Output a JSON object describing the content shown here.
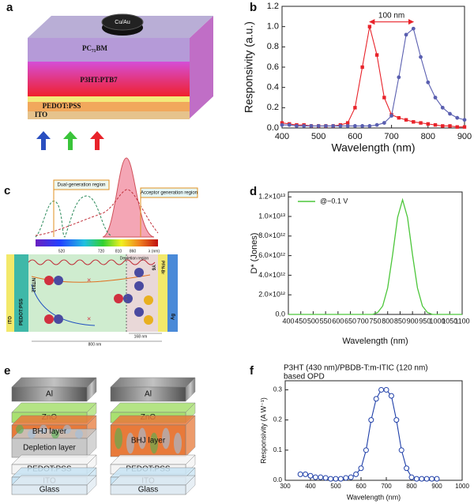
{
  "panel_labels": [
    "a",
    "b",
    "c",
    "d",
    "e",
    "f"
  ],
  "diagram_a": {
    "top": "Cu/Au",
    "layers": [
      "PC₇₁BM",
      "P3HT:PTB7",
      "PEDOT:PSS",
      "ITO"
    ]
  },
  "diagram_c": {
    "regions": [
      "Dual-generation region",
      "Acceptor generation region"
    ],
    "wavelengths": [
      "520",
      "720",
      "810",
      "860",
      "λ (nm)"
    ],
    "depletion": "Depletion region",
    "layers": [
      "ITO",
      "PEDOT:PSS",
      "NT812",
      "Y6",
      "PFN-Br",
      "Ag"
    ],
    "dimensions": [
      "800 nm",
      "168 nm"
    ]
  },
  "diagram_e": {
    "left": [
      "Al",
      "ZnO",
      "BHJ layer",
      "Depletion layer",
      "PEDOT:PSS",
      "ITO",
      "Glass"
    ],
    "right": [
      "Al",
      "ZnO",
      "BHJ layer",
      "PEDOT:PSS",
      "ITO",
      "Glass"
    ]
  },
  "chart_data": [
    {
      "type": "line",
      "xlabel": "Wavelength (nm)",
      "ylabel": "Responsivity (a.u.)",
      "annotation": "100 nm",
      "x": [
        400,
        420,
        440,
        460,
        480,
        500,
        520,
        540,
        560,
        580,
        600,
        620,
        640,
        660,
        680,
        700,
        720,
        740,
        760,
        780,
        800,
        820,
        840,
        860,
        880,
        900
      ],
      "series": [
        {
          "color": "#e8232a",
          "marker": "square",
          "values": [
            0.05,
            0.04,
            0.03,
            0.03,
            0.02,
            0.02,
            0.02,
            0.02,
            0.03,
            0.05,
            0.2,
            0.6,
            1.0,
            0.72,
            0.3,
            0.13,
            0.1,
            0.08,
            0.06,
            0.05,
            0.04,
            0.03,
            0.02,
            0.02,
            0.01,
            0.01
          ]
        },
        {
          "color": "#5a5fb0",
          "marker": "circle",
          "values": [
            0.03,
            0.03,
            0.02,
            0.02,
            0.02,
            0.02,
            0.02,
            0.02,
            0.02,
            0.02,
            0.02,
            0.02,
            0.02,
            0.03,
            0.05,
            0.12,
            0.5,
            0.92,
            0.98,
            0.7,
            0.45,
            0.3,
            0.2,
            0.14,
            0.1,
            0.08
          ]
        }
      ],
      "xlim": [
        400,
        900
      ],
      "xticks": [
        400,
        500,
        600,
        700,
        800,
        900
      ],
      "ylim": [
        0,
        1.2
      ],
      "yticks": [
        {
          "value": 0,
          "label": "0.0"
        },
        0.2,
        0.4,
        0.6,
        0.8,
        {
          "value": 1,
          "label": "1.0"
        },
        1.2
      ]
    },
    {
      "type": "line",
      "xlabel": "Wavelength (nm)",
      "ylabel": "D* (Jones)",
      "legend": "upper left",
      "x": [
        400,
        420,
        440,
        460,
        480,
        500,
        520,
        540,
        560,
        580,
        600,
        620,
        640,
        660,
        680,
        700,
        720,
        740,
        760,
        780,
        800,
        820,
        840,
        860,
        880,
        900,
        920,
        940,
        960,
        980,
        1000,
        1020,
        1040,
        1060,
        1080,
        1100
      ],
      "series": [
        {
          "name": "@−0.1 V",
          "color": "#4cc63a",
          "marker": "none",
          "values": [
            0,
            0,
            0,
            0,
            0,
            0,
            0,
            0,
            0,
            0,
            0,
            0,
            0,
            0,
            0,
            0,
            0,
            0,
            200000000000,
            860000000000,
            2700000000000,
            6100000000000,
            9900000000000,
            11700000000000,
            9900000000000,
            6100000000000,
            2700000000000,
            860000000000,
            200000000000,
            0,
            0,
            0,
            0,
            0,
            0,
            0
          ]
        }
      ],
      "xlim": [
        400,
        1100
      ],
      "xticks": [
        400,
        450,
        500,
        550,
        600,
        650,
        700,
        750,
        800,
        850,
        900,
        950,
        1000,
        1050,
        1100
      ],
      "ylim": [
        0,
        12500000000000
      ],
      "yticks": [
        {
          "value": 0,
          "label": "0.0"
        },
        {
          "value": 2000000000000,
          "label": "2.0×10¹²"
        },
        {
          "value": 4000000000000,
          "label": "4.0×10¹²"
        },
        {
          "value": 6000000000000,
          "label": "6.0×10¹²"
        },
        {
          "value": 8000000000000,
          "label": "8.0×10¹²"
        },
        {
          "value": 10000000000000,
          "label": "1.0×10¹³"
        },
        {
          "value": 12000000000000,
          "label": "1.2×10¹³"
        }
      ]
    },
    {
      "type": "line",
      "xlabel": "Wavelength (nm)",
      "ylabel": "Responsivity (A W⁻¹)",
      "annotation": [
        "P3HT (430 nm)/PBDB-T:m-ITIC (120 nm)",
        "based  OPD"
      ],
      "x": [
        360,
        380,
        400,
        420,
        440,
        460,
        480,
        500,
        520,
        540,
        560,
        580,
        600,
        620,
        640,
        660,
        680,
        700,
        720,
        740,
        760,
        780,
        800,
        820,
        840,
        860,
        880,
        900
      ],
      "series": [
        {
          "color": "#1f3fa8",
          "marker": "open-circle",
          "values": [
            0.02,
            0.02,
            0.015,
            0.01,
            0.01,
            0.008,
            0.005,
            0.005,
            0.005,
            0.008,
            0.01,
            0.02,
            0.04,
            0.1,
            0.2,
            0.27,
            0.3,
            0.3,
            0.28,
            0.2,
            0.1,
            0.04,
            0.01,
            0.005,
            0.005,
            0.005,
            0.005,
            0.005
          ]
        }
      ],
      "xlim": [
        300,
        1000
      ],
      "xticks": [
        300,
        400,
        500,
        600,
        700,
        800,
        900,
        1000
      ],
      "ylim": [
        0,
        0.33
      ],
      "yticks": [
        {
          "value": 0,
          "label": "0.0"
        },
        0.1,
        0.2,
        0.3
      ]
    }
  ]
}
